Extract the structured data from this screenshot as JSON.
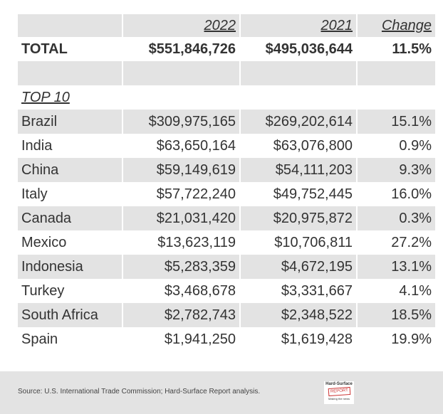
{
  "header": {
    "col_2022": "2022",
    "col_2021": "2021",
    "col_change": "Change"
  },
  "total": {
    "label": "TOTAL",
    "v2022": "$551,846,726",
    "v2021": "$495,036,644",
    "change": "11.5%"
  },
  "section_label": "TOP 10",
  "rows": [
    {
      "country": "Brazil",
      "v2022": "$309,975,165",
      "v2021": "$269,202,614",
      "change": "15.1%"
    },
    {
      "country": "India",
      "v2022": "$63,650,164",
      "v2021": "$63,076,800",
      "change": "0.9%"
    },
    {
      "country": "China",
      "v2022": "$59,149,619",
      "v2021": "$54,111,203",
      "change": "9.3%"
    },
    {
      "country": "Italy",
      "v2022": "$57,722,240",
      "v2021": "$49,752,445",
      "change": "16.0%"
    },
    {
      "country": "Canada",
      "v2022": "$21,031,420",
      "v2021": "$20,975,872",
      "change": "0.3%"
    },
    {
      "country": "Mexico",
      "v2022": "$13,623,119",
      "v2021": "$10,706,811",
      "change": "27.2%"
    },
    {
      "country": "Indonesia",
      "v2022": "$5,283,359",
      "v2021": "$4,672,195",
      "change": "13.1%"
    },
    {
      "country": "Turkey",
      "v2022": "$3,468,678",
      "v2021": "$3,331,667",
      "change": "4.1%"
    },
    {
      "country": "South Africa",
      "v2022": "$2,782,743",
      "v2021": "$2,348,522",
      "change": "18.5%"
    },
    {
      "country": "Spain",
      "v2022": "$1,941,250",
      "v2021": "$1,619,428",
      "change": "19.9%"
    }
  ],
  "footer": {
    "source": "Source: U.S. International Trade Commission; Hard-Surface Report analysis.",
    "logo_top": "Hard-Surface",
    "logo_mid": "REPORT",
    "logo_bottom": "Making the news"
  },
  "colors": {
    "stripe": "#e3e3e3",
    "text": "#333333"
  }
}
